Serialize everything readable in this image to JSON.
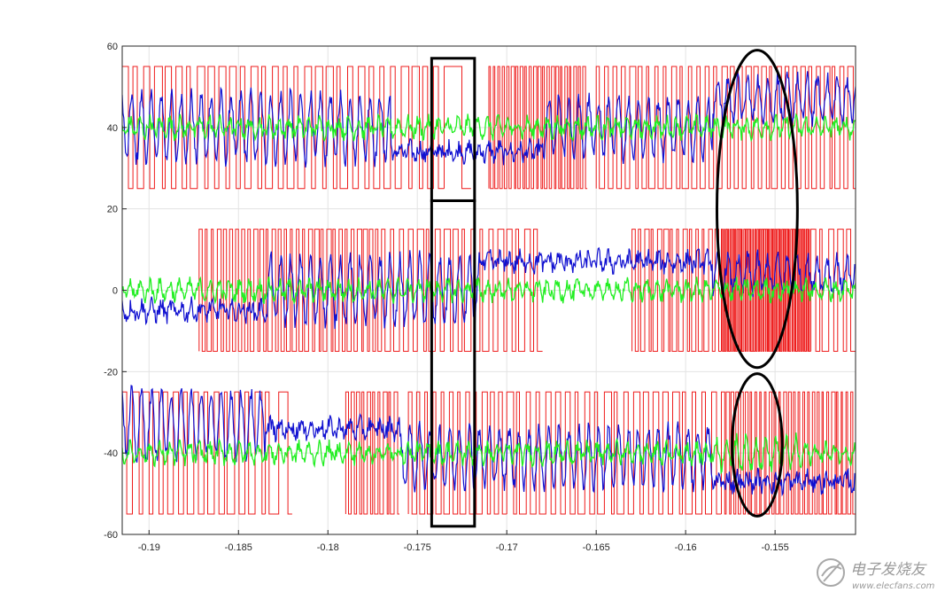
{
  "chart_data": {
    "type": "line",
    "title": "",
    "xlabel": "",
    "ylabel": "",
    "xlim": [
      -0.1915,
      -0.1505
    ],
    "ylim": [
      -60,
      60
    ],
    "xticks": [
      -0.19,
      -0.185,
      -0.18,
      -0.175,
      -0.17,
      -0.165,
      -0.16,
      -0.155
    ],
    "xtick_labels": [
      "-0.19",
      "-0.185",
      "-0.18",
      "-0.175",
      "-0.17",
      "-0.165",
      "-0.16",
      "-0.155"
    ],
    "yticks": [
      -60,
      -40,
      -20,
      0,
      20,
      40,
      60
    ],
    "ytick_labels": [
      "-60",
      "-40",
      "-20",
      "0",
      "20",
      "40",
      "60"
    ],
    "grid": true,
    "legend": "none",
    "groups": [
      {
        "center": 40,
        "pwm_high": 55,
        "pwm_low": 25,
        "pwm_segments": [
          {
            "x0": -0.1915,
            "x1": -0.1735,
            "pulses": 30
          },
          {
            "x0": -0.1735,
            "x1": -0.172,
            "pulses": 1
          },
          {
            "x0": -0.171,
            "x1": -0.1655,
            "pulses": 22
          },
          {
            "x0": -0.165,
            "x1": -0.1575,
            "pulses": 16
          },
          {
            "x0": -0.1575,
            "x1": -0.1505,
            "pulses": 16
          }
        ]
      },
      {
        "center": 0,
        "pwm_high": 15,
        "pwm_low": -15,
        "pwm_segments": [
          {
            "x0": -0.1872,
            "x1": -0.177,
            "pulses": 30
          },
          {
            "x0": -0.177,
            "x1": -0.168,
            "pulses": 18
          },
          {
            "x0": -0.163,
            "x1": -0.158,
            "pulses": 14
          },
          {
            "x0": -0.158,
            "x1": -0.153,
            "pulses": 40
          },
          {
            "x0": -0.153,
            "x1": -0.1505,
            "pulses": 5
          }
        ]
      },
      {
        "center": -40,
        "pwm_high": -25,
        "pwm_low": -55,
        "pwm_segments": [
          {
            "x0": -0.1915,
            "x1": -0.1835,
            "pulses": 14
          },
          {
            "x0": -0.1835,
            "x1": -0.182,
            "pulses": 2
          },
          {
            "x0": -0.179,
            "x1": -0.176,
            "pulses": 10
          },
          {
            "x0": -0.1755,
            "x1": -0.17,
            "pulses": 12
          },
          {
            "x0": -0.17,
            "x1": -0.158,
            "pulses": 22
          },
          {
            "x0": -0.158,
            "x1": -0.1505,
            "pulses": 28
          }
        ]
      }
    ],
    "series": [
      {
        "role": "pwm",
        "color": "#ee1c1c"
      },
      {
        "role": "current",
        "color": "#1010d0"
      },
      {
        "role": "voltage",
        "color": "#22ee22"
      }
    ],
    "annotations": [
      {
        "type": "rectangle",
        "x0": -0.1742,
        "x1": -0.1718,
        "y0": 22,
        "y1": 57
      },
      {
        "type": "rectangle",
        "x0": -0.1742,
        "x1": -0.1718,
        "y0": -58,
        "y1": 22
      },
      {
        "type": "ellipse",
        "cx": -0.156,
        "cy": 20,
        "rx": 0.00225,
        "ry": 39
      },
      {
        "type": "ellipse",
        "cx": -0.156,
        "cy": -38,
        "rx": 0.0014,
        "ry": 17.5
      }
    ]
  },
  "watermark": {
    "text_cn": "电子发烧友",
    "text_url": "www.elecfans.com",
    "color": "#9a9a9a"
  }
}
